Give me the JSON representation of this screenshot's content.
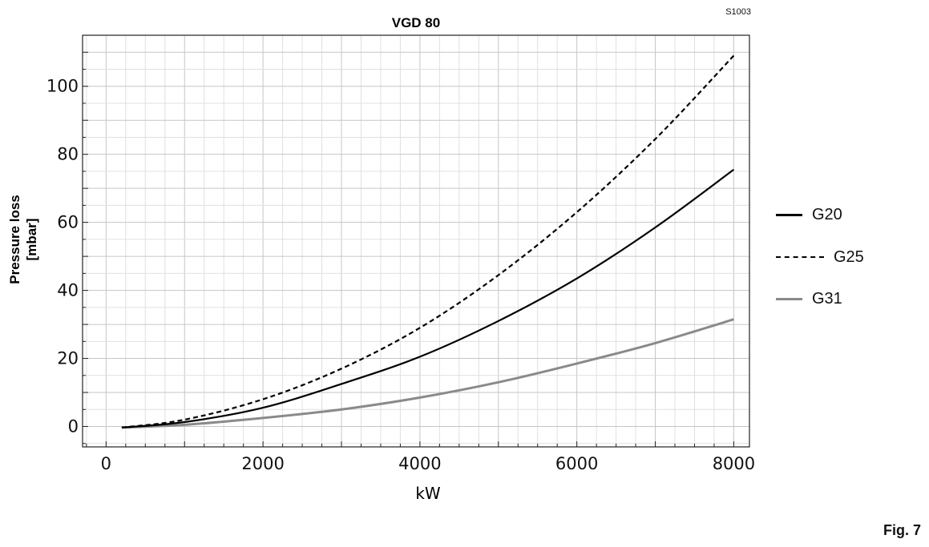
{
  "code": "S1003",
  "figure_label": "Fig. 7",
  "chart_data": {
    "type": "line",
    "title": "VGD 80",
    "xlabel": "kW",
    "ylabel_lines": [
      "Pressure loss",
      "[mbar]"
    ],
    "xlim": [
      -300,
      8200
    ],
    "ylim": [
      -6,
      115
    ],
    "xticks": [
      0,
      2000,
      4000,
      6000,
      8000
    ],
    "xtick_labels": [
      "0",
      "2000",
      "4000",
      "6000",
      "8000"
    ],
    "yticks": [
      0,
      20,
      40,
      60,
      80,
      100
    ],
    "ytick_labels": [
      "0",
      "20",
      "40",
      "60",
      "80",
      "100"
    ],
    "grid": true,
    "legend_position": "right",
    "series": [
      {
        "name": "G20",
        "style": "solid",
        "color": "#000000",
        "x": [
          200,
          1000,
          2000,
          3000,
          4000,
          5000,
          6000,
          7000,
          8000
        ],
        "y": [
          -0.3,
          1.3,
          5.5,
          12.5,
          20.5,
          31.0,
          43.5,
          58.5,
          75.5
        ]
      },
      {
        "name": "G25",
        "style": "dashed",
        "color": "#000000",
        "x": [
          200,
          1000,
          2000,
          3000,
          4000,
          5000,
          6000,
          7000,
          8000
        ],
        "y": [
          -0.3,
          2.0,
          8.0,
          17.0,
          29.0,
          44.5,
          63.0,
          84.5,
          109.0
        ]
      },
      {
        "name": "G31",
        "style": "solid",
        "color": "#8a8a8a",
        "x": [
          200,
          1000,
          2000,
          3000,
          4000,
          5000,
          6000,
          7000,
          8000
        ],
        "y": [
          -0.3,
          0.5,
          2.5,
          5.0,
          8.5,
          13.0,
          18.5,
          24.5,
          31.5
        ]
      }
    ]
  }
}
